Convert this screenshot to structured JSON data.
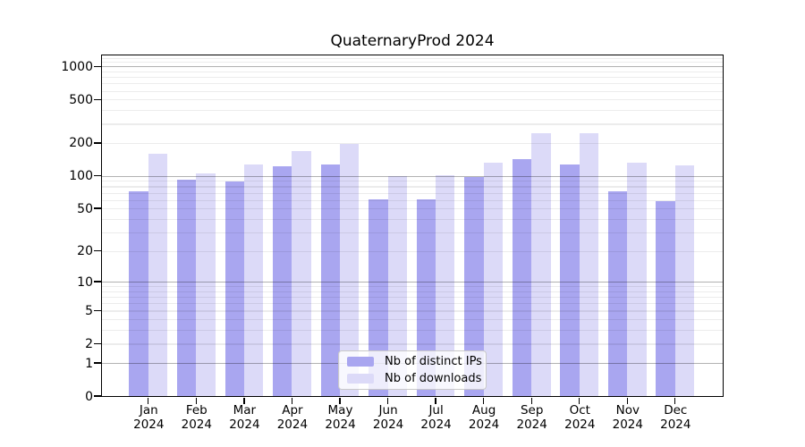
{
  "title": "QuaternaryProd 2024",
  "chart_data": {
    "type": "bar",
    "title": "QuaternaryProd 2024",
    "categories": [
      "Jan",
      "Feb",
      "Mar",
      "Apr",
      "May",
      "Jun",
      "Jul",
      "Aug",
      "Sep",
      "Oct",
      "Nov",
      "Dec"
    ],
    "year": "2024",
    "series": [
      {
        "name": "Nb of distinct IPs",
        "color": "#a9a6f0",
        "values": [
          72,
          93,
          89,
          123,
          128,
          61,
          61,
          98,
          142,
          128,
          72,
          59
        ]
      },
      {
        "name": "Nb of downloads",
        "color": "#dcdaf8",
        "values": [
          160,
          105,
          126,
          170,
          196,
          99,
          101,
          132,
          245,
          245,
          132,
          125
        ]
      }
    ],
    "y_axis": {
      "scale": "log10(value+1)",
      "ylim": [
        0,
        1300
      ],
      "tick_values": [
        0,
        1,
        2,
        5,
        10,
        20,
        50,
        100,
        200,
        500,
        1000
      ],
      "tick_labels": [
        "0",
        "1",
        "2",
        "5",
        "10",
        "20",
        "50",
        "100",
        "200",
        "500",
        "1000"
      ],
      "major_gridlines": [
        1,
        10,
        100,
        1000
      ],
      "minor_gridlines": [
        2,
        3,
        4,
        5,
        6,
        7,
        8,
        9,
        20,
        30,
        40,
        50,
        60,
        70,
        80,
        90,
        200,
        300,
        400,
        500,
        600,
        700,
        800,
        900,
        1100,
        1200
      ]
    },
    "x_axis": {
      "tick_label_line2": "2024"
    },
    "legend": {
      "position": "inside-bottom-center"
    },
    "colors": {
      "major_grid": "#b3b3b3",
      "minor_grid": "#ececec",
      "axis": "#000000",
      "background": "#ffffff"
    }
  }
}
